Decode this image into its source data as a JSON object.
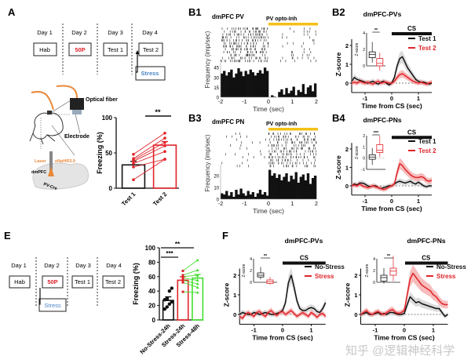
{
  "panels": {
    "A": "A",
    "B1": "B1",
    "B2": "B2",
    "B3": "B3",
    "B4": "B4",
    "E": "E",
    "F": "F"
  },
  "colors": {
    "black": "#111111",
    "red": "#e0242a",
    "green": "#44dd33",
    "blue": "#4a86c8",
    "orange": "#e8883a",
    "yellow": "#f5c018",
    "shade_red": "#f3a0a0",
    "shade_gray": "#cccccc"
  },
  "protocol_A": {
    "days": [
      "Day 1",
      "Day 2",
      "Day 3",
      "Day 4"
    ],
    "boxes": [
      "Hab",
      "50P",
      "Test 1",
      "Test 2"
    ],
    "stress": "Stress"
  },
  "protocol_E": {
    "days": [
      "Day 1",
      "Day 2",
      "Day 3",
      "Day 4"
    ],
    "boxes": [
      "Hab",
      "50P",
      "Test 1",
      "Test 2"
    ],
    "stress": "Stress"
  },
  "illustration": {
    "optical_fiber": "Optical fiber",
    "electrode": "Electrode",
    "laser": "Laser",
    "opsin": "eNpHR3.0",
    "region": "dmPFC",
    "line": "PV-Cre"
  },
  "watermark": "知乎 @逻辑神经科学",
  "chart_data": [
    {
      "id": "A_freezing",
      "type": "bar",
      "categories": [
        "Test 1",
        "Test 2"
      ],
      "values": [
        33,
        61
      ],
      "ylabel": "Freezing (%)",
      "ylim": [
        0,
        100
      ],
      "yticks": [
        "0",
        "50",
        "100"
      ],
      "paired_points": [
        [
          12,
          41
        ],
        [
          30,
          41
        ],
        [
          35,
          52
        ],
        [
          38,
          60
        ],
        [
          40,
          65
        ],
        [
          42,
          71
        ],
        [
          48,
          78
        ]
      ],
      "significance": "**",
      "bar_colors": [
        "#111111",
        "#e0242a"
      ]
    },
    {
      "id": "B1_psth",
      "type": "bar",
      "title": "dmPFC PV",
      "annotation": "PV opto-Inh",
      "xlabel": "Time (sec)",
      "ylabel": "Frequency (imp/sec)",
      "xlim": [
        -2,
        2
      ],
      "ylim": [
        0,
        50
      ],
      "xticks": [
        "-2",
        "-1",
        "0",
        "1",
        "2"
      ],
      "yticks": [
        "0",
        "15",
        "30",
        "45"
      ],
      "values": [
        36,
        40,
        33,
        38,
        42,
        30,
        36,
        44,
        39,
        32,
        40,
        35,
        42,
        38,
        33,
        37,
        41,
        36,
        45,
        40,
        0,
        3,
        1,
        0,
        8,
        12,
        4,
        14,
        6,
        10,
        16,
        3,
        11,
        8,
        20,
        5,
        15,
        18,
        9,
        21
      ]
    },
    {
      "id": "B3_psth",
      "type": "bar",
      "title": "dmPFC PN",
      "annotation": "PV opto-Inh",
      "xlabel": "Time (sec)",
      "ylabel": "Frequency (imp/sec)",
      "xlim": [
        -2,
        2
      ],
      "ylim": [
        0,
        28
      ],
      "xticks": [
        "-2",
        "-1",
        "0",
        "1",
        "2"
      ],
      "yticks": [
        "0",
        "10",
        "20"
      ],
      "values": [
        5,
        4,
        7,
        3,
        6,
        2,
        8,
        4,
        9,
        5,
        3,
        7,
        4,
        6,
        2,
        5,
        8,
        4,
        6,
        3,
        25,
        20,
        22,
        18,
        21,
        16,
        19,
        22,
        15,
        20,
        17,
        23,
        14,
        19,
        21,
        16,
        22,
        13,
        18,
        20
      ]
    },
    {
      "id": "B2",
      "type": "line",
      "title": "dmPFC-PVs",
      "xlabel": "Time from CS (sec)",
      "ylabel": "Z-score",
      "bar_label": "CS",
      "xlim": [
        -1.5,
        1.5
      ],
      "ylim": [
        -0.5,
        2.5
      ],
      "xticks": [
        "-1",
        "0",
        "1"
      ],
      "yticks": [
        "0",
        "1",
        "2"
      ],
      "x_step": 0.1,
      "series": [
        {
          "name": "Test 1",
          "color": "#111111",
          "values": [
            0.1,
            0.3,
            0.2,
            0.15,
            0.1,
            0.05,
            0.0,
            0.05,
            0.1,
            0.0,
            -0.05,
            0.05,
            0.1,
            0.0,
            -0.1,
            0.0,
            0.3,
            0.9,
            1.3,
            1.4,
            1.1,
            0.8,
            0.6,
            0.4,
            0.2,
            0.1,
            0.05,
            0.05,
            0.0,
            -0.05,
            0.0
          ]
        },
        {
          "name": "Test 2",
          "color": "#e0242a",
          "values": [
            0.0,
            0.05,
            0.0,
            0.1,
            0.05,
            0.0,
            0.05,
            0.0,
            -0.05,
            0.05,
            0.1,
            0.0,
            0.05,
            0.05,
            0.0,
            0.0,
            0.1,
            0.3,
            0.45,
            0.5,
            0.4,
            0.3,
            0.2,
            0.1,
            0.05,
            0.0,
            0.05,
            0.0,
            -0.05,
            0.0,
            0.05
          ]
        }
      ],
      "inset": {
        "ylabel": "Z-score",
        "yticks": [
          "0",
          "2",
          "4"
        ],
        "significance": "**",
        "boxes": [
          {
            "median": 1.4,
            "q1": 1.0,
            "q3": 1.7,
            "min": 0.4,
            "max": 2.9
          },
          {
            "median": 0.3,
            "q1": 0.0,
            "q3": 0.9,
            "min": -0.6,
            "max": 1.6
          }
        ]
      }
    },
    {
      "id": "B4",
      "type": "line",
      "title": "dmPFC-PNs",
      "xlabel": "Time from CS (sec)",
      "ylabel": "Z-score",
      "bar_label": "CS",
      "xlim": [
        -1.5,
        1.5
      ],
      "ylim": [
        -0.5,
        2.5
      ],
      "xticks": [
        "-1",
        "0",
        "1"
      ],
      "yticks": [
        "0",
        "1",
        "2"
      ],
      "x_step": 0.1,
      "series": [
        {
          "name": "Test 1",
          "color": "#111111",
          "values": [
            0.0,
            0.1,
            0.05,
            0.15,
            0.15,
            0.1,
            0.0,
            -0.05,
            0.0,
            0.0,
            -0.1,
            -0.15,
            -0.1,
            -0.05,
            0.0,
            0.0,
            0.1,
            0.2,
            0.25,
            0.2,
            0.15,
            0.2,
            0.25,
            0.15,
            0.1,
            0.2,
            0.1,
            0.0,
            -0.05,
            0.0,
            0.0
          ]
        },
        {
          "name": "Test 2",
          "color": "#e0242a",
          "values": [
            0.0,
            0.05,
            0.0,
            0.1,
            0.0,
            -0.05,
            -0.1,
            -0.05,
            0.0,
            -0.05,
            -0.1,
            -0.15,
            -0.2,
            -0.15,
            -0.05,
            0.0,
            0.1,
            0.7,
            1.2,
            1.1,
            0.9,
            0.75,
            0.6,
            0.5,
            0.45,
            0.45,
            0.5,
            0.45,
            0.3,
            0.25,
            0.3
          ]
        }
      ],
      "inset": {
        "ylabel": "Z-score",
        "yticks": [
          "-1",
          "0",
          "1",
          "2"
        ],
        "significance": "***",
        "boxes": [
          {
            "median": 0.1,
            "q1": -0.1,
            "q3": 0.3,
            "min": -0.6,
            "max": 0.9
          },
          {
            "median": 0.7,
            "q1": 0.5,
            "q3": 1.2,
            "min": 0.1,
            "max": 2.0
          }
        ]
      }
    },
    {
      "id": "E_freezing",
      "type": "bar",
      "categories": [
        "No-Stress-24h",
        "Stress-24h",
        "Stress-48h"
      ],
      "values": [
        27,
        55,
        58
      ],
      "ylabel": "Freezing (%)",
      "ylim": [
        0,
        100
      ],
      "yticks": [
        "0",
        "20",
        "40",
        "60",
        "80",
        "100"
      ],
      "points": [
        [
          15,
          18,
          22,
          25,
          28,
          30,
          40,
          44
        ],
        [
          39,
          52,
          55,
          58,
          60,
          62,
          68
        ],
        [
          38,
          45,
          50,
          55,
          62,
          69,
          83
        ]
      ],
      "significance": [
        "***",
        "**"
      ],
      "bar_colors": [
        "#111111",
        "#e0242a",
        "#44dd33"
      ]
    },
    {
      "id": "F_PVs",
      "type": "line",
      "title": "dmPFC-PVs",
      "xlabel": "Time from CS (sec)",
      "ylabel": "Z-score",
      "bar_label": "CS",
      "xlim": [
        -1.5,
        1.5
      ],
      "ylim": [
        -0.5,
        2.5
      ],
      "xticks": [
        "-1",
        "0",
        "1"
      ],
      "yticks": [
        "0",
        "1",
        "2"
      ],
      "x_step": 0.1,
      "series": [
        {
          "name": "No-Stress",
          "color": "#111111",
          "values": [
            0.0,
            0.1,
            0.05,
            0.0,
            0.0,
            0.1,
            0.05,
            0.0,
            0.05,
            0.1,
            0.05,
            0.0,
            0.0,
            0.05,
            0.1,
            0.2,
            0.6,
            1.6,
            2.0,
            1.4,
            0.7,
            0.3,
            0.2,
            0.2,
            0.3,
            0.35,
            0.3,
            0.15,
            0.1,
            0.3,
            0.6
          ]
        },
        {
          "name": "Stress",
          "color": "#e0242a",
          "values": [
            -0.1,
            -0.2,
            0.0,
            0.1,
            0.0,
            -0.1,
            0.1,
            0.15,
            0.0,
            -0.1,
            0.1,
            0.2,
            0.05,
            -0.05,
            0.1,
            0.15,
            0.0,
            0.1,
            0.2,
            0.05,
            -0.1,
            0.0,
            0.1,
            0.0,
            -0.1,
            0.1,
            0.0,
            -0.15,
            0.0,
            0.05,
            -0.1
          ]
        }
      ],
      "inset": {
        "ylabel": "Z-score",
        "yticks": [
          "0",
          "2",
          "4"
        ],
        "significance": "**",
        "boxes": [
          {
            "median": 1.2,
            "q1": 0.9,
            "q3": 1.6,
            "min": 0.5,
            "max": 2.6
          },
          {
            "median": 0.1,
            "q1": -0.2,
            "q3": 0.4,
            "min": -0.4,
            "max": 0.9
          }
        ]
      }
    },
    {
      "id": "F_PNs",
      "type": "line",
      "title": "dmPFC-PNs",
      "xlabel": "Time from CS (sec)",
      "ylabel": "Z-score",
      "bar_label": "CS",
      "xlim": [
        -1.5,
        1.5
      ],
      "ylim": [
        -0.5,
        2.5
      ],
      "xticks": [
        "-1",
        "0",
        "1"
      ],
      "yticks": [
        "0",
        "1",
        "2"
      ],
      "x_step": 0.1,
      "series": [
        {
          "name": "No-Stress",
          "color": "#111111",
          "values": [
            0.0,
            0.05,
            0.1,
            0.0,
            0.0,
            0.05,
            0.1,
            0.0,
            0.05,
            0.0,
            0.1,
            0.1,
            0.05,
            0.0,
            0.0,
            0.05,
            0.5,
            0.9,
            0.75,
            0.6,
            0.65,
            0.55,
            0.5,
            0.45,
            0.4,
            0.35,
            0.3,
            0.3,
            0.1,
            -0.1,
            0.0
          ]
        },
        {
          "name": "Stress",
          "color": "#e0242a",
          "values": [
            0.0,
            0.1,
            0.2,
            0.05,
            0.0,
            0.1,
            0.15,
            0.05,
            0.0,
            0.1,
            0.2,
            0.25,
            0.1,
            0.05,
            0.1,
            0.2,
            1.0,
            1.8,
            2.1,
            1.9,
            1.7,
            1.5,
            1.4,
            1.3,
            1.2,
            1.0,
            0.9,
            0.7,
            0.55,
            0.5,
            0.5
          ]
        }
      ],
      "inset": {
        "ylabel": "Z-score",
        "yticks": [
          "0",
          "2",
          "4"
        ],
        "significance": "**",
        "boxes": [
          {
            "median": 0.8,
            "q1": 0.2,
            "q3": 1.2,
            "min": -0.2,
            "max": 2.4
          },
          {
            "median": 1.9,
            "q1": 1.2,
            "q3": 2.4,
            "min": 0.2,
            "max": 4.5
          }
        ]
      }
    }
  ]
}
